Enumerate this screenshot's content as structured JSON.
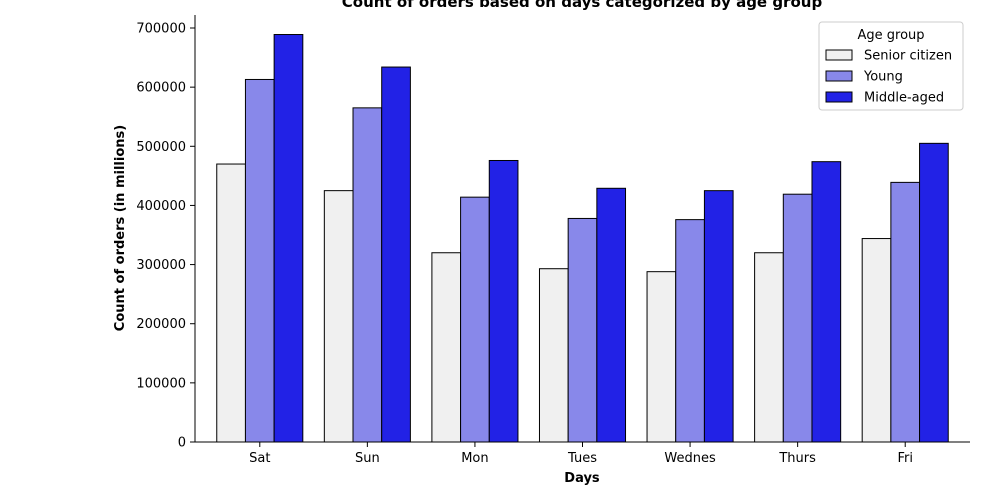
{
  "chart_data": {
    "type": "bar",
    "title": "Count of orders based on days categorized by age group",
    "xlabel": "Days",
    "ylabel": "Count of orders (in millions)",
    "categories": [
      "Sat",
      "Sun",
      "Mon",
      "Tues",
      "Wednes",
      "Thurs",
      "Fri"
    ],
    "series": [
      {
        "name": "Senior citizen",
        "color": "#f0f0f0",
        "values": [
          470000,
          425000,
          320000,
          293000,
          288000,
          320000,
          344000
        ]
      },
      {
        "name": "Young",
        "color": "#8888ea",
        "values": [
          613000,
          565000,
          414000,
          378000,
          376000,
          419000,
          439000
        ]
      },
      {
        "name": "Middle-aged",
        "color": "#2222e6",
        "values": [
          689000,
          634000,
          476000,
          429000,
          425000,
          474000,
          505000
        ]
      }
    ],
    "ylim": [
      0,
      722000
    ],
    "yticks": [
      0,
      100000,
      200000,
      300000,
      400000,
      500000,
      600000,
      700000
    ],
    "grid": false,
    "legend": {
      "title": "Age group",
      "position": "top-right"
    }
  }
}
